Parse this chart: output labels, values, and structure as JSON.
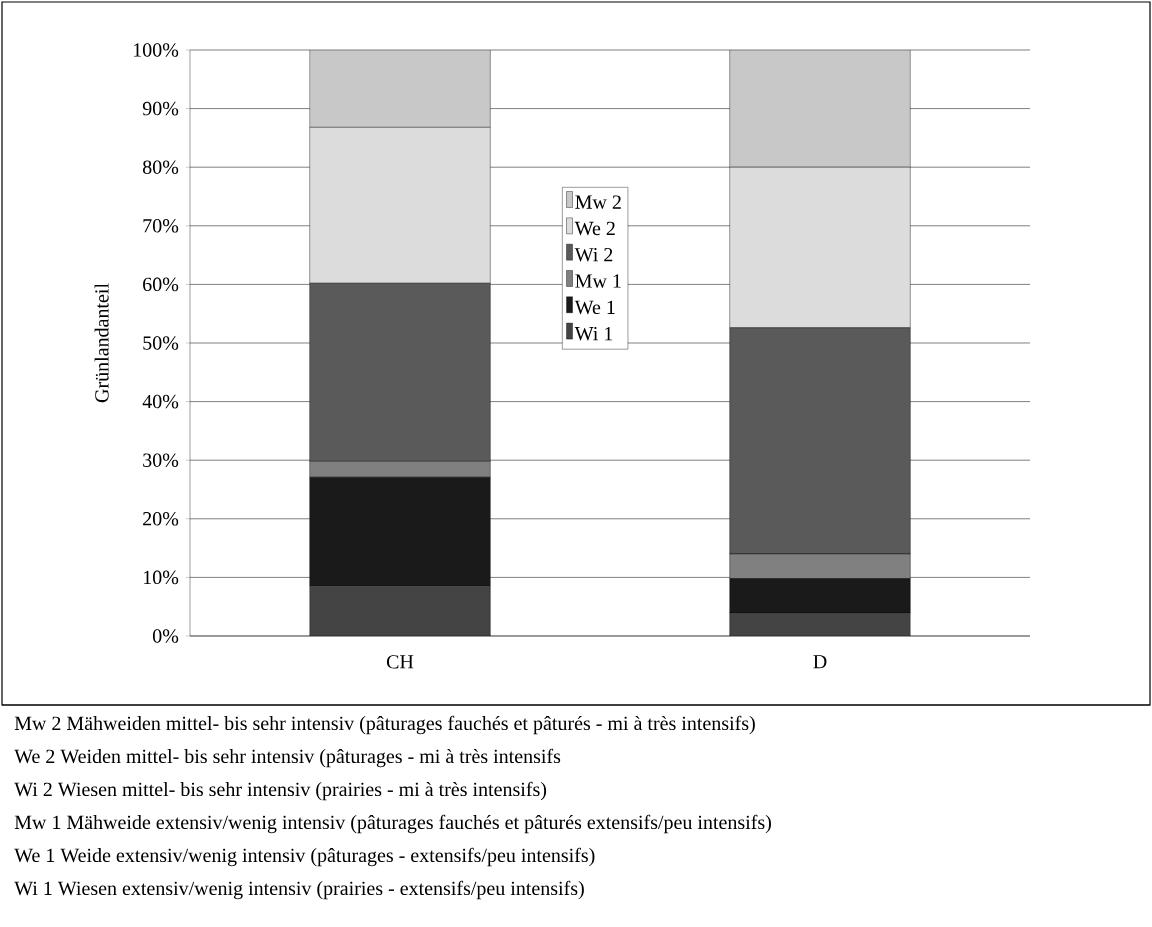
{
  "chart_data": {
    "type": "bar",
    "stacked": true,
    "ylabel": "Grünlandanteil",
    "categories": [
      "CH",
      "D"
    ],
    "series": [
      {
        "name": "Wi 1",
        "color": "#444444",
        "values": [
          8.5,
          3.9
        ]
      },
      {
        "name": "We 1",
        "color": "#1a1a1a",
        "values": [
          18.6,
          5.9
        ]
      },
      {
        "name": "Mw 1",
        "color": "#808080",
        "values": [
          2.7,
          4.2
        ]
      },
      {
        "name": "Wi 2",
        "color": "#5a5a5a",
        "values": [
          30.4,
          38.6
        ]
      },
      {
        "name": "We 2",
        "color": "#dcdcdc",
        "values": [
          26.6,
          27.4
        ]
      },
      {
        "name": "Mw 2",
        "color": "#c8c8c8",
        "values": [
          13.2,
          20.0
        ]
      }
    ],
    "ylim": [
      0,
      100
    ],
    "yticks": [
      {
        "value": 0,
        "label": "0%"
      },
      {
        "value": 10,
        "label": "10%"
      },
      {
        "value": 20,
        "label": "20%"
      },
      {
        "value": 30,
        "label": "30%"
      },
      {
        "value": 40,
        "label": "40%"
      },
      {
        "value": 50,
        "label": "50%"
      },
      {
        "value": 60,
        "label": "60%"
      },
      {
        "value": 70,
        "label": "70%"
      },
      {
        "value": 80,
        "label": "80%"
      },
      {
        "value": 90,
        "label": "90%"
      },
      {
        "value": 100,
        "label": "100%"
      }
    ],
    "grid": "y",
    "legend": "center",
    "annotations": [
      "Mw 2  Mähweiden mittel- bis sehr intensiv (pâturages fauchés et pâturés - mi à très intensifs)",
      "We 2  Weiden mittel- bis sehr intensiv (pâturages - mi à très intensifs",
      "Wi 2  Wiesen mittel- bis sehr intensiv (prairies - mi à très intensifs)",
      "Mw 1  Mähweide extensiv/wenig intensiv (pâturages fauchés et pâturés extensifs/peu intensifs)",
      "We 1  Weide extensiv/wenig intensiv (pâturages - extensifs/peu intensifs)",
      "Wi 1  Wiesen extensiv/wenig intensiv (prairies - extensifs/peu intensifs)"
    ]
  }
}
